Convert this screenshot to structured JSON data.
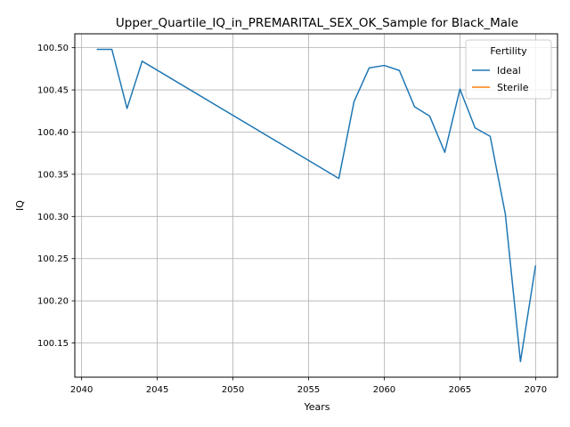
{
  "chart_data": {
    "type": "line",
    "title": "Upper_Quartile_IQ_in_PREMARITAL_SEX_OK_Sample for Black_Male",
    "xlabel": "Years",
    "ylabel": "IQ",
    "xlim": [
      2039.55,
      2071.45
    ],
    "ylim": [
      100.1095,
      100.5165
    ],
    "xticks": [
      2040,
      2045,
      2050,
      2055,
      2060,
      2065,
      2070
    ],
    "yticks": [
      100.15,
      100.2,
      100.25,
      100.3,
      100.35,
      100.4,
      100.45,
      100.5
    ],
    "xtick_labels": [
      "2040",
      "2045",
      "2050",
      "2055",
      "2060",
      "2065",
      "2070"
    ],
    "ytick_labels": [
      "100.15",
      "100.20",
      "100.25",
      "100.30",
      "100.35",
      "100.40",
      "100.45",
      "100.50"
    ],
    "grid": true,
    "legend": {
      "title": "Fertility",
      "placement": "upper-right",
      "entries": [
        "Ideal",
        "Sterile"
      ]
    },
    "series": [
      {
        "name": "Ideal",
        "color": "#1f77b4",
        "x": [
          2041,
          2042,
          2043,
          2044,
          2057,
          2058,
          2059,
          2060,
          2061,
          2062,
          2063,
          2064,
          2065,
          2066,
          2067,
          2068,
          2069,
          2070
        ],
        "y": [
          100.498,
          100.498,
          100.428,
          100.484,
          100.345,
          100.436,
          100.476,
          100.479,
          100.473,
          100.43,
          100.419,
          100.376,
          100.451,
          100.405,
          100.395,
          100.303,
          100.128,
          100.242
        ]
      },
      {
        "name": "Sterile",
        "color": "#ff7f0e",
        "x": [],
        "y": []
      }
    ]
  }
}
